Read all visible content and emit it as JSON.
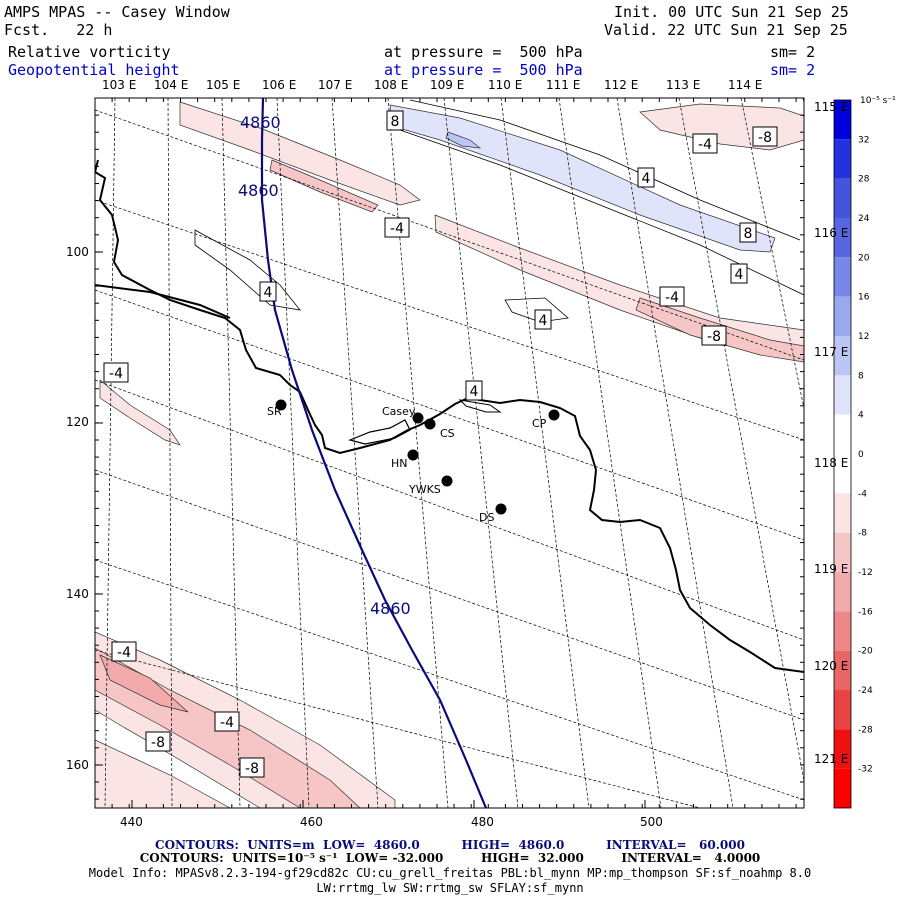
{
  "header": {
    "title": "AMPS MPAS -- Casey Window",
    "fcst": "Fcst.   22 h",
    "init": "Init. 00 UTC Sun 21 Sep 25",
    "valid": "Valid. 22 UTC Sun 21 Sep 25",
    "field1": "Relative vorticity",
    "field2": "Geopotential height",
    "pressure1": "at pressure =  500 hPa",
    "pressure2": "at pressure =  500 hPa",
    "sm1": "sm= 2",
    "sm2": "sm= 2"
  },
  "footer": {
    "contours1": "CONTOURS:  UNITS=m  LOW=  4860.0          HIGH=  4860.0          INTERVAL=   60.000",
    "contours2": "CONTOURS:  UNITS=10⁻⁵ s⁻¹  LOW= -32.000         HIGH=  32.000         INTERVAL=   4.0000",
    "model_info": "Model Info: MPASv8.2.3-194-gf29cd82c CU:cu_grell_freitas PBL:bl_mynn MP:mp_thompson SF:sf_noahmp 8.0",
    "model_info2": "LW:rrtmg_lw SW:rrtmg_sw SFLAY:sf_mynn"
  },
  "colorbar": {
    "unit": "10⁻⁵ s⁻¹",
    "labels": [
      "32",
      "28",
      "24",
      "20",
      "16",
      "12",
      "8",
      "4",
      "0",
      "-4",
      "-8",
      "-12",
      "-16",
      "-20",
      "-24",
      "-28",
      "-32"
    ],
    "colors": [
      "#0000dd",
      "#2233dd",
      "#4455dd",
      "#5566e0",
      "#7788e6",
      "#99aaee",
      "#bbc6f4",
      "#dfe4fa",
      "#ffffff",
      "#ffffff",
      "#fbe4e4",
      "#f6c6c6",
      "#f2aaaa",
      "#ee8888",
      "#ea6666",
      "#e84444",
      "#ee1111",
      "#ff0000"
    ]
  },
  "chart_data": {
    "type": "contour map",
    "x_ticks": [
      440,
      460,
      480,
      500
    ],
    "y_ticks": [
      100,
      120,
      140,
      160
    ],
    "top_lon_labels": [
      "103 E",
      "104 E",
      "105 E",
      "106 E",
      "107 E",
      "108 E",
      "109 E",
      "110 E",
      "111 E",
      "112 E",
      "113 E",
      "114 E"
    ],
    "right_lat_labels": [
      "115 E",
      "116 E",
      "117 E",
      "118 E",
      "119 E",
      "120 E",
      "121 E"
    ],
    "height_contour": {
      "value": 4860,
      "labels": [
        "4860",
        "4860",
        "4860"
      ]
    },
    "vorticity_labels": [
      "8",
      "-4",
      "-8",
      "4",
      "-4",
      "4",
      "8",
      "4",
      "-4",
      "-8",
      "4",
      "4",
      "-4",
      "-4",
      "-8",
      "-4",
      "-8"
    ],
    "stations": [
      "SR",
      "Casey",
      "CS",
      "CP",
      "HN",
      "YWKS",
      "DS"
    ]
  }
}
